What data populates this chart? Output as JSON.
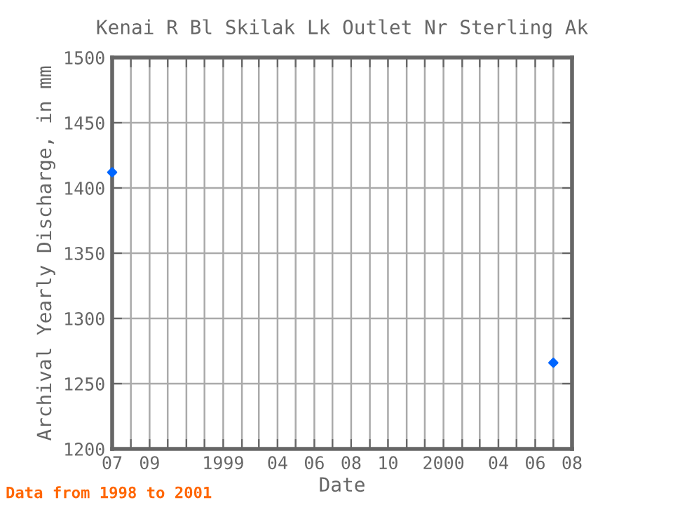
{
  "chart_data": {
    "type": "scatter",
    "title": "Kenai R Bl Skilak Lk Outlet Nr Sterling Ak",
    "xlabel": "Date",
    "ylabel": "Archival Yearly Discharge, in mm",
    "x": [
      "1998-07",
      "2000-07"
    ],
    "series": [
      {
        "color": "#0066ff",
        "values": [
          1412,
          1266
        ]
      }
    ],
    "marker": "diamond",
    "grid": true,
    "xlim": [
      "1998-07",
      "2000-08"
    ],
    "xticks": [
      {
        "value": "1998-07",
        "label": "07"
      },
      {
        "value": "1998-08",
        "label": null
      },
      {
        "value": "1998-09",
        "label": "09"
      },
      {
        "value": "1998-10",
        "label": null
      },
      {
        "value": "1998-11",
        "label": null
      },
      {
        "value": "1998-12",
        "label": null
      },
      {
        "value": "1999-01",
        "label": "1999"
      },
      {
        "value": "1999-02",
        "label": null
      },
      {
        "value": "1999-03",
        "label": null
      },
      {
        "value": "1999-04",
        "label": "04"
      },
      {
        "value": "1999-05",
        "label": null
      },
      {
        "value": "1999-06",
        "label": "06"
      },
      {
        "value": "1999-07",
        "label": null
      },
      {
        "value": "1999-08",
        "label": "08"
      },
      {
        "value": "1999-09",
        "label": null
      },
      {
        "value": "1999-10",
        "label": "10"
      },
      {
        "value": "1999-11",
        "label": null
      },
      {
        "value": "1999-12",
        "label": null
      },
      {
        "value": "2000-01",
        "label": "2000"
      },
      {
        "value": "2000-02",
        "label": null
      },
      {
        "value": "2000-03",
        "label": null
      },
      {
        "value": "2000-04",
        "label": "04"
      },
      {
        "value": "2000-05",
        "label": null
      },
      {
        "value": "2000-06",
        "label": "06"
      },
      {
        "value": "2000-07",
        "label": null
      },
      {
        "value": "2000-08",
        "label": "08"
      }
    ],
    "ylim": [
      1200,
      1500
    ],
    "yticks": [
      1200,
      1250,
      1300,
      1350,
      1400,
      1450,
      1500
    ],
    "annotations": [
      "Data from 1998 to 2001"
    ]
  }
}
